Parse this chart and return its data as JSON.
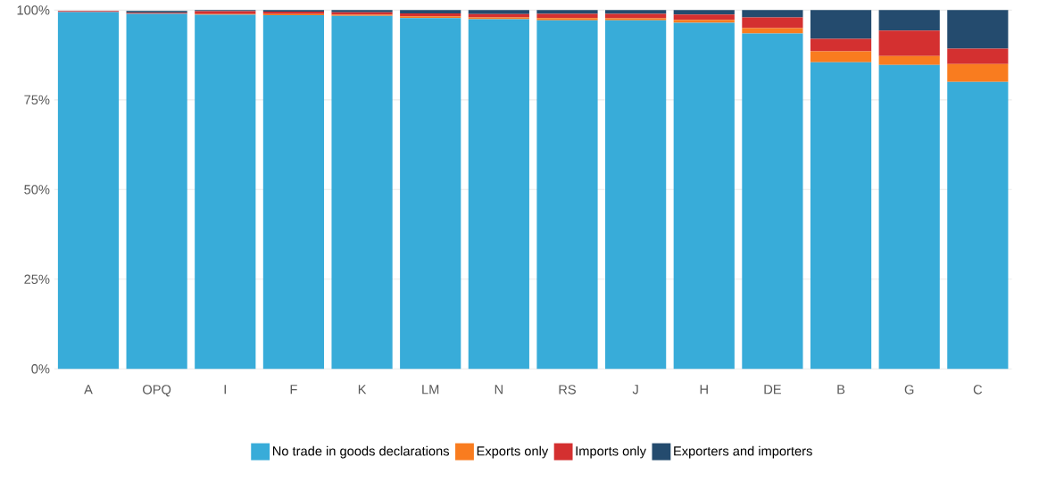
{
  "chart_data": {
    "type": "bar",
    "stacked": true,
    "categories": [
      "A",
      "OPQ",
      "I",
      "F",
      "K",
      "LM",
      "N",
      "RS",
      "J",
      "H",
      "DE",
      "B",
      "G",
      "C"
    ],
    "series": [
      {
        "name": "No trade in goods declarations",
        "color": "#38acd9",
        "values": [
          99.5,
          99.0,
          98.7,
          98.6,
          98.4,
          97.8,
          97.5,
          97.2,
          97.2,
          96.5,
          93.5,
          85.5,
          84.7,
          80.0
        ]
      },
      {
        "name": "Exports only",
        "color": "#f97c1f",
        "values": [
          null,
          null,
          0.2,
          0.3,
          0.3,
          0.5,
          0.5,
          0.6,
          0.5,
          0.8,
          1.5,
          3.0,
          2.5,
          5.0
        ]
      },
      {
        "name": "Imports only",
        "color": "#d43030",
        "values": [
          0.3,
          0.3,
          0.8,
          0.7,
          0.7,
          0.8,
          0.9,
          1.2,
          1.3,
          1.5,
          3.0,
          3.5,
          7.1,
          4.3
        ]
      },
      {
        "name": "Exporters and importers",
        "color": "#244b6e",
        "values": [
          null,
          0.5,
          0.3,
          0.4,
          0.6,
          0.9,
          1.1,
          1.0,
          1.0,
          1.2,
          2.0,
          8.0,
          5.7,
          10.7
        ]
      }
    ],
    "ylim": [
      0,
      100
    ],
    "yticks": [
      {
        "value": 0,
        "label": "0%"
      },
      {
        "value": 25,
        "label": "25%"
      },
      {
        "value": 50,
        "label": "50%"
      },
      {
        "value": 75,
        "label": "75%"
      },
      {
        "value": 100,
        "label": "100%"
      }
    ],
    "grid": "y",
    "legend": "bottom"
  }
}
